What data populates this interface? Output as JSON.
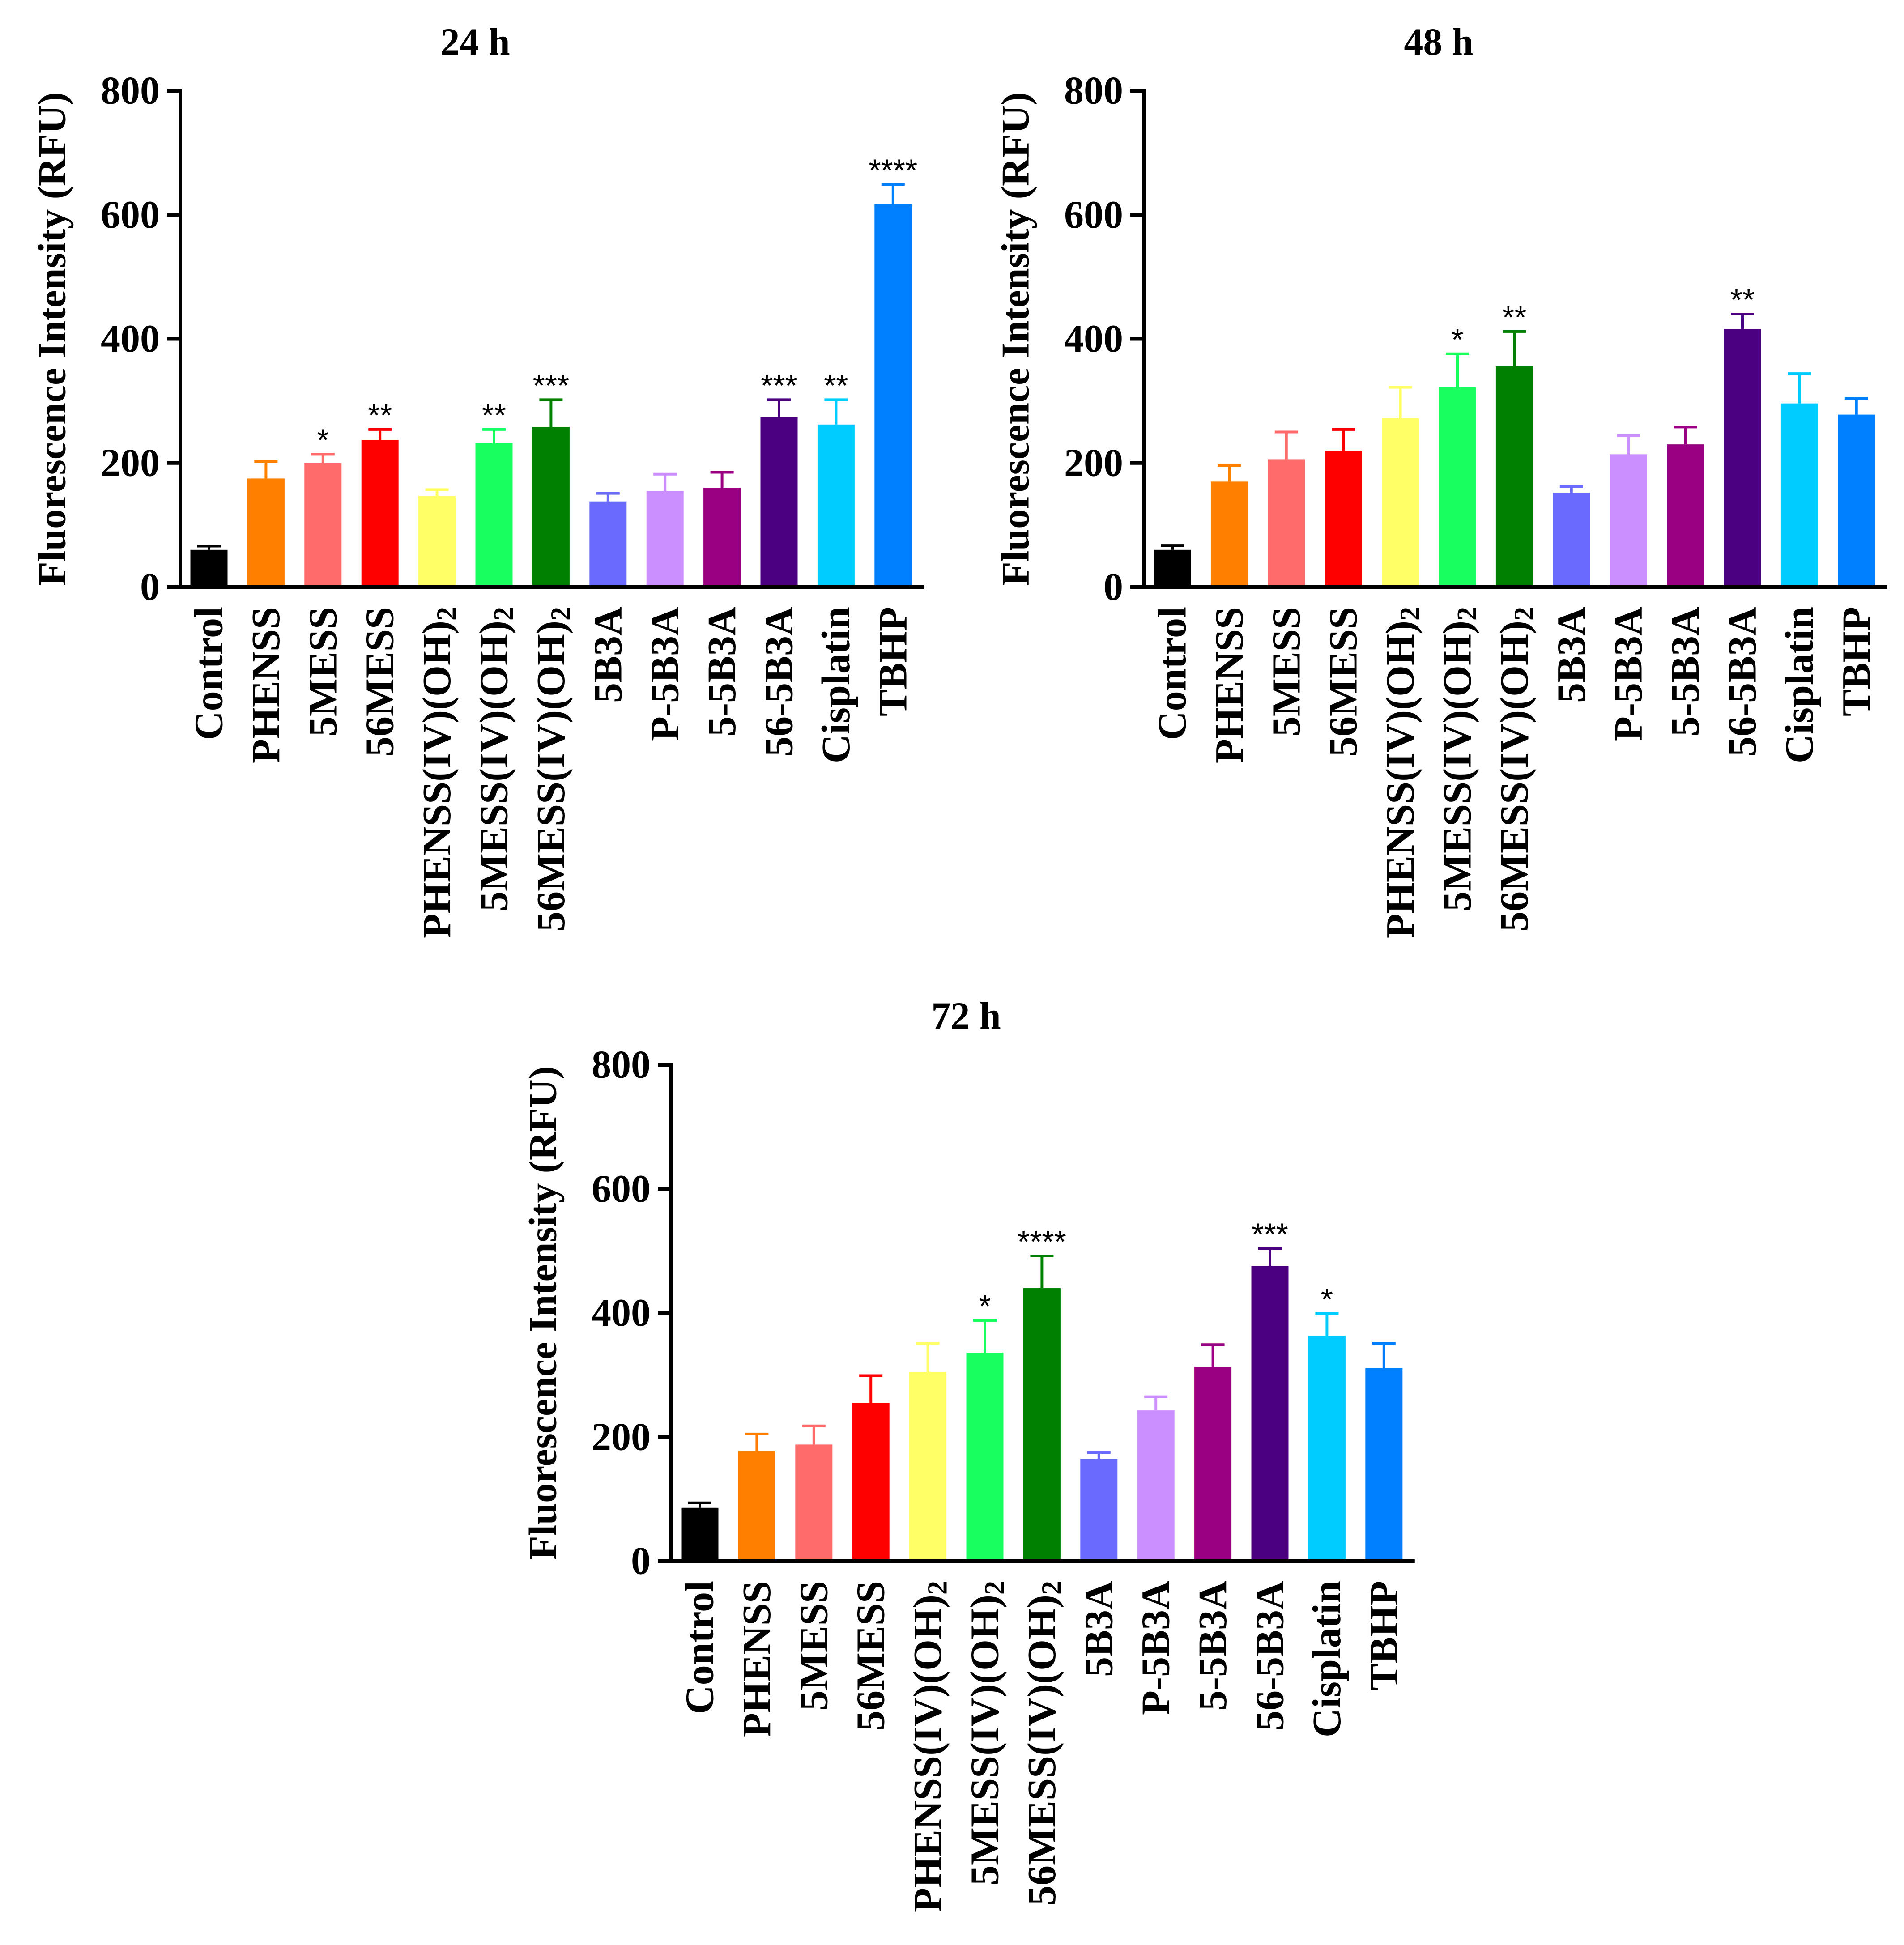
{
  "chart_data": [
    {
      "type": "bar",
      "title": "24 h",
      "ylabel": "Fluorescence Intensity (RFU)",
      "ylim": [
        0,
        800
      ],
      "yticks": [
        0,
        200,
        400,
        600,
        800
      ],
      "grid": false,
      "categories": [
        "Control",
        "PHENSS",
        "5MESS",
        "56MESS",
        "PHENSS(IV)(OH)2",
        "5MESS(IV)(OH)2",
        "56MESS(IV)(OH)2",
        "5B3A",
        "P-5B3A",
        "5-5B3A",
        "56-5B3A",
        "Cisplatin",
        "TBHP"
      ],
      "values": [
        60,
        175,
        200,
        237,
        147,
        232,
        258,
        138,
        155,
        160,
        274,
        262,
        617
      ],
      "errors": [
        6,
        27,
        14,
        17,
        10,
        22,
        44,
        13,
        27,
        25,
        28,
        40,
        32
      ],
      "significance": [
        null,
        null,
        "*",
        "**",
        null,
        "**",
        "***",
        null,
        null,
        null,
        "***",
        "**",
        "****"
      ],
      "colors": [
        "#000000",
        "#FF8000",
        "#FF6A6A",
        "#FF0000",
        "#FFFF66",
        "#18FF60",
        "#008000",
        "#6A6AFF",
        "#CC8FFF",
        "#990082",
        "#4B0082",
        "#00CCFF",
        "#0080FF"
      ]
    },
    {
      "type": "bar",
      "title": "48 h",
      "ylabel": "Fluorescence Intensity (RFU)",
      "ylim": [
        0,
        800
      ],
      "yticks": [
        0,
        200,
        400,
        600,
        800
      ],
      "grid": false,
      "categories": [
        "Control",
        "PHENSS",
        "5MESS",
        "56MESS",
        "PHENSS(IV)(OH)2",
        "5MESS(IV)(OH)2",
        "56MESS(IV)(OH)2",
        "5B3A",
        "P-5B3A",
        "5-5B3A",
        "56-5B3A",
        "Cisplatin",
        "TBHP"
      ],
      "values": [
        60,
        170,
        206,
        220,
        272,
        322,
        356,
        152,
        214,
        230,
        416,
        296,
        278
      ],
      "errors": [
        7,
        26,
        44,
        34,
        50,
        54,
        56,
        10,
        30,
        28,
        24,
        48,
        26
      ],
      "significance": [
        null,
        null,
        null,
        null,
        null,
        "*",
        "**",
        null,
        null,
        null,
        "**",
        null,
        null
      ],
      "colors": [
        "#000000",
        "#FF8000",
        "#FF6A6A",
        "#FF0000",
        "#FFFF66",
        "#18FF60",
        "#008000",
        "#6A6AFF",
        "#CC8FFF",
        "#990082",
        "#4B0082",
        "#00CCFF",
        "#0080FF"
      ]
    },
    {
      "type": "bar",
      "title": "72 h",
      "ylabel": "Fluorescence Intensity (RFU)",
      "ylim": [
        0,
        800
      ],
      "yticks": [
        0,
        200,
        400,
        600,
        800
      ],
      "grid": false,
      "categories": [
        "Control",
        "PHENSS",
        "5MESS",
        "56MESS",
        "PHENSS(IV)(OH)2",
        "5MESS(IV)(OH)2",
        "56MESS(IV)(OH)2",
        "5B3A",
        "P-5B3A",
        "5-5B3A",
        "56-5B3A",
        "Cisplatin",
        "TBHP"
      ],
      "values": [
        86,
        178,
        188,
        255,
        305,
        336,
        440,
        165,
        243,
        313,
        476,
        363,
        311
      ],
      "errors": [
        8,
        27,
        30,
        44,
        46,
        52,
        52,
        10,
        22,
        36,
        28,
        36,
        40
      ],
      "significance": [
        null,
        null,
        null,
        null,
        null,
        "*",
        "****",
        null,
        null,
        null,
        "***",
        "*",
        null
      ],
      "colors": [
        "#000000",
        "#FF8000",
        "#FF6A6A",
        "#FF0000",
        "#FFFF66",
        "#18FF60",
        "#008000",
        "#6A6AFF",
        "#CC8FFF",
        "#990082",
        "#4B0082",
        "#00CCFF",
        "#0080FF"
      ]
    }
  ]
}
